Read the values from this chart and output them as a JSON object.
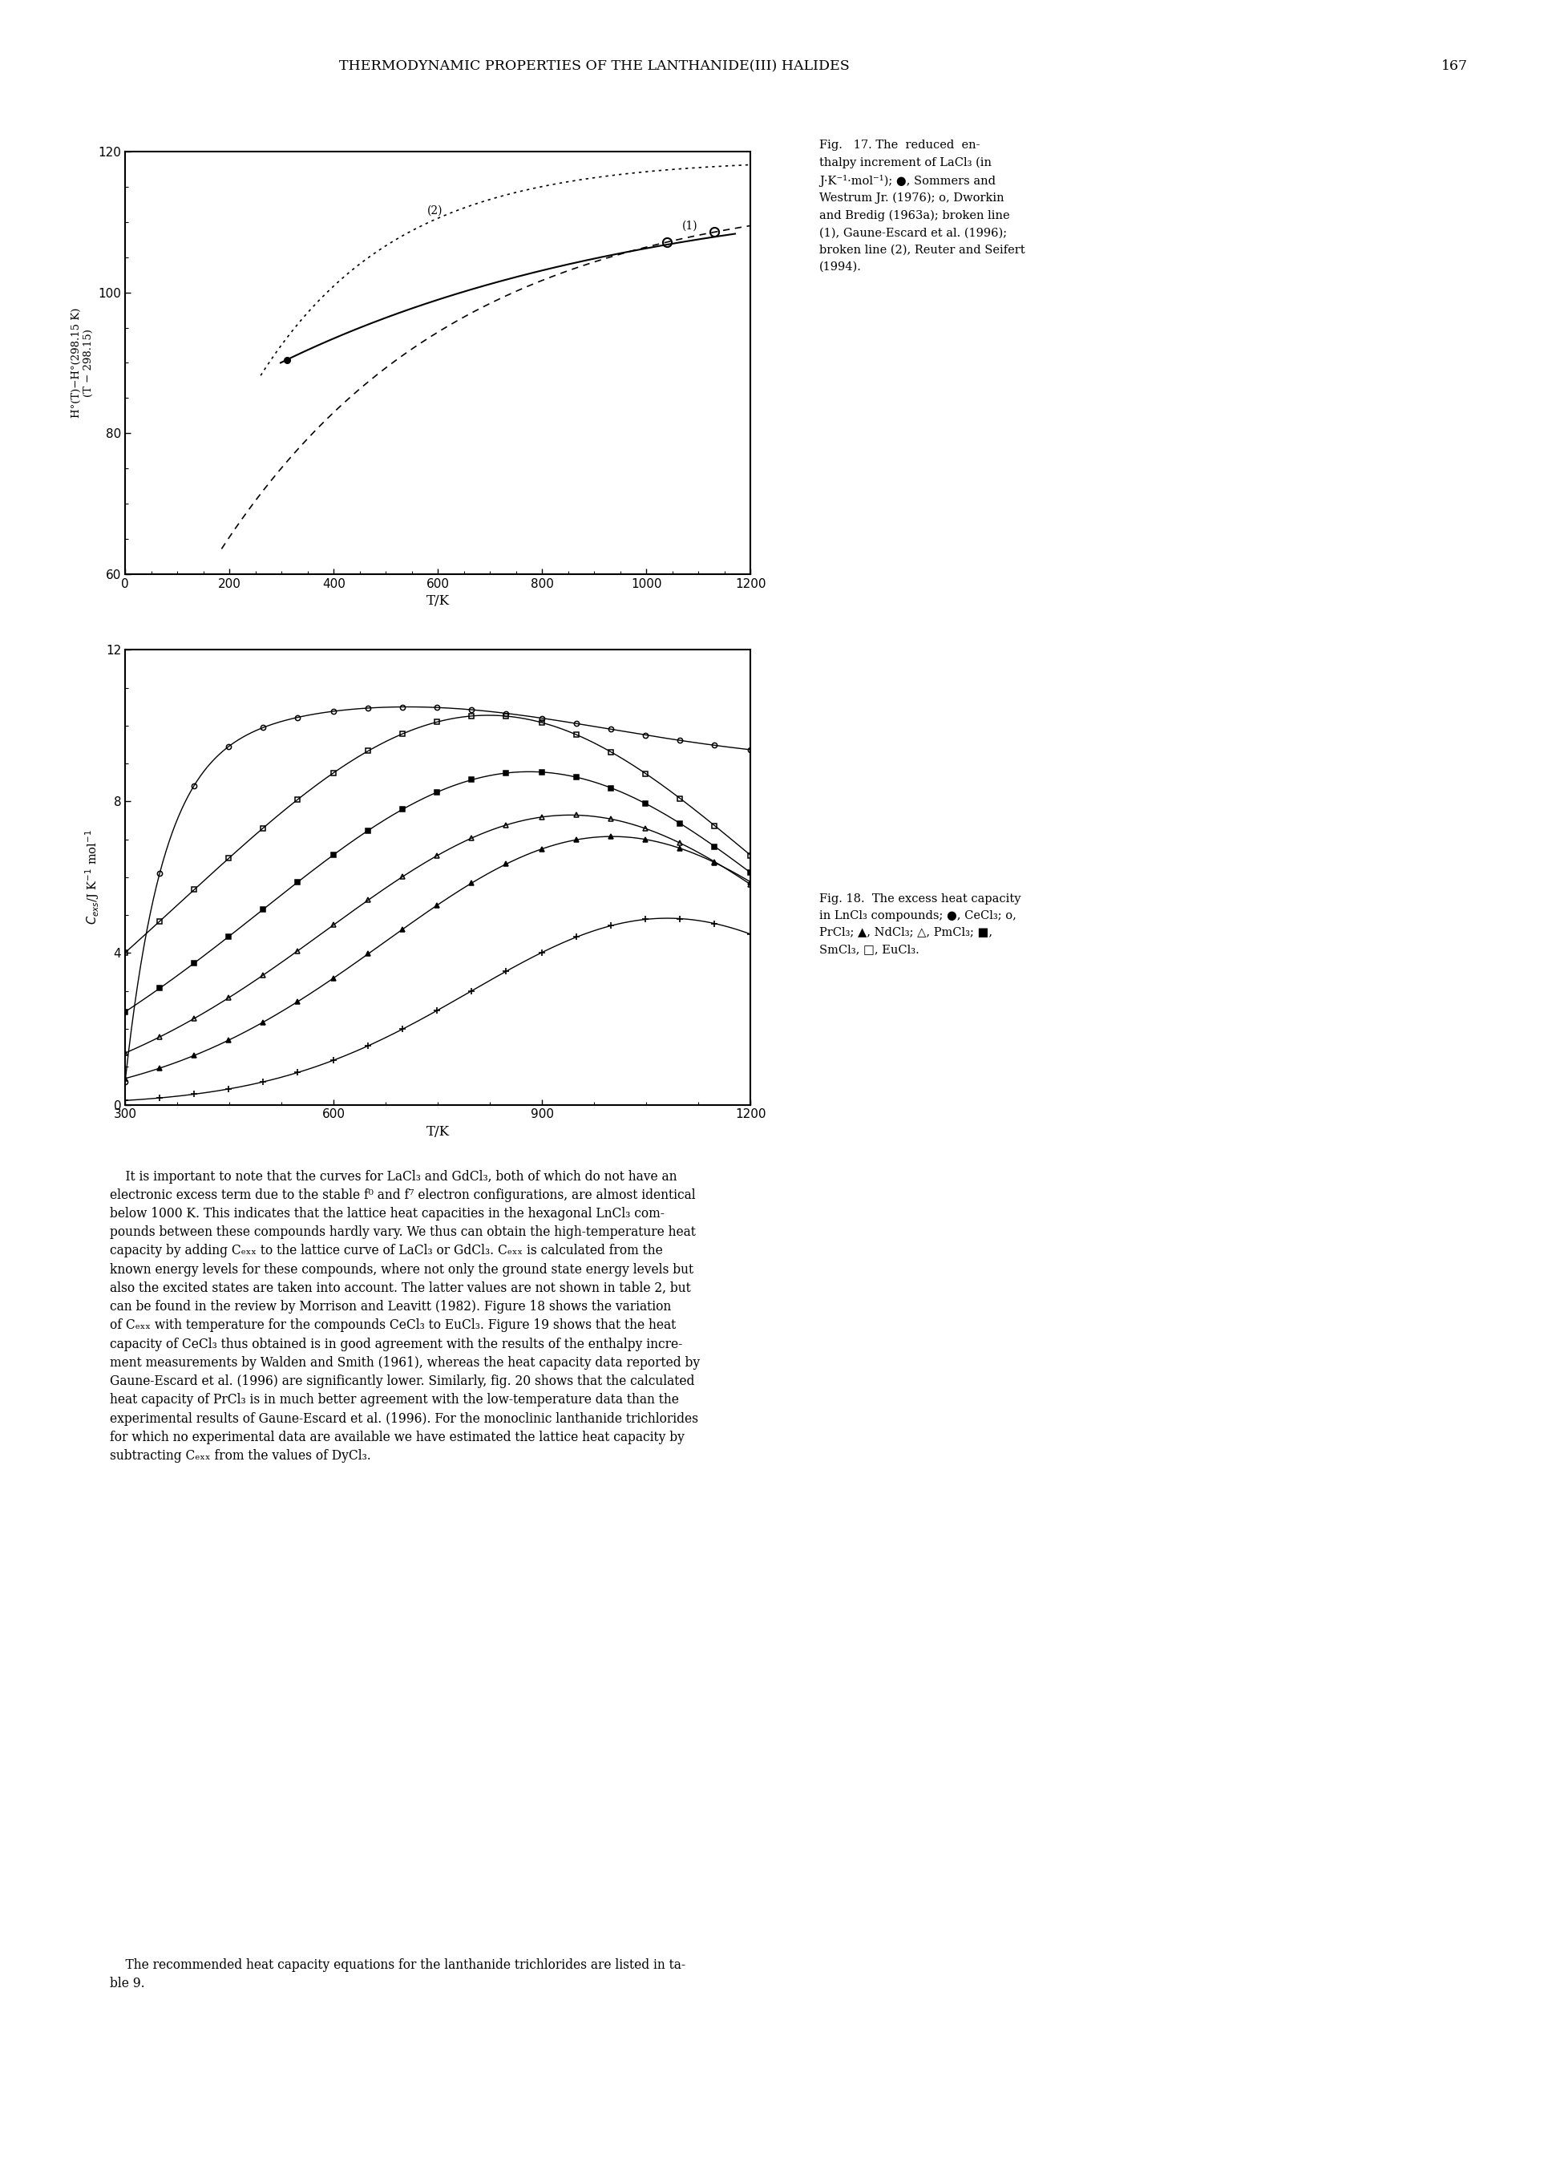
{
  "page_header": "THERMODYNAMIC PROPERTIES OF THE LANTHANIDE(III) HALIDES",
  "page_number": "167",
  "fig17": {
    "xlabel": "T/K",
    "xlim": [
      0,
      1200
    ],
    "ylim": [
      60,
      120
    ],
    "yticks": [
      60,
      80,
      100,
      120
    ],
    "xticks": [
      0,
      200,
      400,
      600,
      800,
      1000,
      1200
    ],
    "caption_lines": [
      "Fig.   17. The  reduced  en-",
      "thalpy increment of LaCl₃ (in",
      "J·K⁻¹·mol⁻¹); ●, Sommers and",
      "Westrum Jr. (1976); o, Dworkin",
      "and Bredig (1963a); broken line",
      "(1), Gaune-Escard et al. (1996);",
      "broken line (2), Reuter and Seifert",
      "(1994)."
    ]
  },
  "fig18": {
    "xlabel": "T/K",
    "xlim": [
      300,
      1200
    ],
    "ylim": [
      0,
      12
    ],
    "yticks": [
      0,
      4,
      8,
      12
    ],
    "xticks": [
      300,
      600,
      900,
      1200
    ],
    "caption_lines": [
      "Fig. 18.  The excess heat capacity",
      "in LnCl₃ compounds; ●, CeCl₃; o,",
      "PrCl₃; ▲, NdCl₃; △, PmCl₃; ■,",
      "SmCl₃, □, EuCl₃."
    ]
  },
  "body_paragraph1_lines": [
    "    It is important to note that the curves for LaCl₃ and GdCl₃, both of which do not have an",
    "electronic excess term due to the stable f⁰ and f⁷ electron configurations, are almost identical",
    "below 1000 K. This indicates that the lattice heat capacities in the hexagonal LnCl₃ com-",
    "pounds between these compounds hardly vary. We thus can obtain the high-temperature heat",
    "capacity by adding Cₑₓₓ to the lattice curve of LaCl₃ or GdCl₃. Cₑₓₓ is calculated from the",
    "known energy levels for these compounds, where not only the ground state energy levels but",
    "also the excited states are taken into account. The latter values are not shown in table 2, but",
    "can be found in the review by Morrison and Leavitt (1982). Figure 18 shows the variation",
    "of Cₑₓₓ with temperature for the compounds CeCl₃ to EuCl₃. Figure 19 shows that the heat",
    "capacity of CeCl₃ thus obtained is in good agreement with the results of the enthalpy incre-",
    "ment measurements by Walden and Smith (1961), whereas the heat capacity data reported by",
    "Gaune-Escard et al. (1996) are significantly lower. Similarly, fig. 20 shows that the calculated",
    "heat capacity of PrCl₃ is in much better agreement with the low-temperature data than the",
    "experimental results of Gaune-Escard et al. (1996). For the monoclinic lanthanide trichlorides",
    "for which no experimental data are available we have estimated the lattice heat capacity by",
    "subtracting Cₑₓₓ from the values of DyCl₃."
  ],
  "body_paragraph2_lines": [
    "    The recommended heat capacity equations for the lanthanide trichlorides are listed in ta-",
    "ble 9."
  ]
}
